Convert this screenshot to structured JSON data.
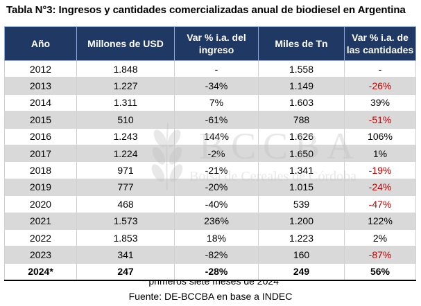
{
  "title": "Tabla N°3: Ingresos y cantidades comercializadas anual de biodiesel en Argentina",
  "watermark": {
    "name": "BCCBA",
    "subtitle": "Bolsa de Cereales de Córdoba"
  },
  "table": {
    "headers": [
      "Año",
      "Millones de USD",
      "Var % i.a. del ingreso",
      "Miles de Tn",
      "Var % i.a. de las cantidades"
    ],
    "rows": [
      [
        "2012",
        "1.848",
        "-",
        "1.558",
        "-"
      ],
      [
        "2013",
        "1.227",
        "-34%",
        "1.149",
        "-26%"
      ],
      [
        "2014",
        "1.311",
        "7%",
        "1.603",
        "39%"
      ],
      [
        "2015",
        "510",
        "-61%",
        "788",
        "-51%"
      ],
      [
        "2016",
        "1.243",
        "144%",
        "1.626",
        "106%"
      ],
      [
        "2017",
        "1.224",
        "-2%",
        "1.650",
        "1%"
      ],
      [
        "2018",
        "971",
        "-21%",
        "1.341",
        "-19%"
      ],
      [
        "2019",
        "777",
        "-20%",
        "1.015",
        "-24%"
      ],
      [
        "2020",
        "468",
        "-40%",
        "539",
        "-47%"
      ],
      [
        "2021",
        "1.573",
        "236%",
        "1.200",
        "122%"
      ],
      [
        "2022",
        "1.853",
        "18%",
        "1.223",
        "2%"
      ],
      [
        "2023",
        "341",
        "-82%",
        "160",
        "-87%"
      ]
    ],
    "total_row": [
      "2024*",
      "247",
      "-28%",
      "249",
      "56%"
    ]
  },
  "footnote": "* primeros siete meses de 2024",
  "source": "Fuente: DE-BCCBA en base a INDEC",
  "colors": {
    "header_bg": "#1f3864",
    "stripe": "#d9d9d9",
    "negative": "#c00000"
  }
}
